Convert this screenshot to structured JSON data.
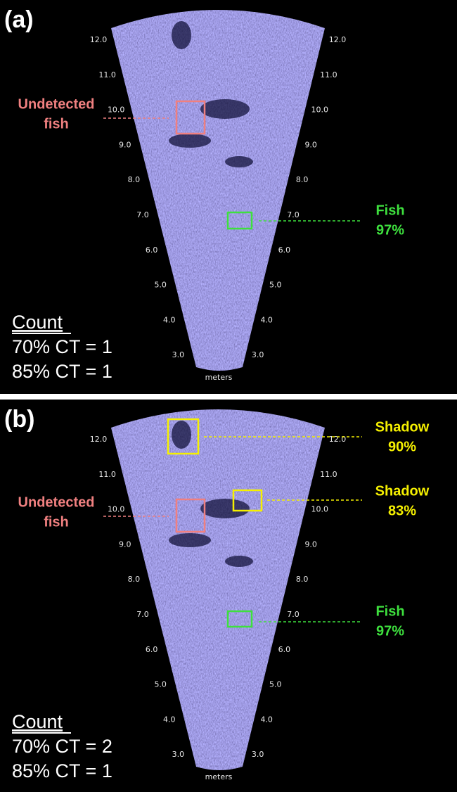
{
  "panels": [
    {
      "label": "(a)",
      "range_left": [
        "12.0",
        "11.0",
        "10.0",
        "9.0",
        "8.0",
        "7.0",
        "6.0",
        "5.0",
        "4.0",
        "3.0"
      ],
      "range_right": [
        "12.0",
        "11.0",
        "10.0",
        "9.0",
        "8.0",
        "7.0",
        "6.0",
        "5.0",
        "4.0",
        "3.0"
      ],
      "unit": "meters",
      "annotations": [
        {
          "lines": [
            "Undetected",
            "fish"
          ],
          "color": "#f08080"
        },
        {
          "lines": [
            "Fish",
            "97%"
          ],
          "color": "#3ee03e"
        }
      ],
      "count": {
        "title": "Count",
        "lines": [
          "70% CT = 1",
          "85% CT = 1"
        ]
      }
    },
    {
      "label": "(b)",
      "range_left": [
        "12.0",
        "11.0",
        "10.0",
        "9.0",
        "8.0",
        "7.0",
        "6.0",
        "5.0",
        "4.0",
        "3.0"
      ],
      "range_right": [
        "12.0",
        "11.0",
        "10.0",
        "9.0",
        "8.0",
        "7.0",
        "6.0",
        "5.0",
        "4.0",
        "3.0"
      ],
      "unit": "meters",
      "annotations": [
        {
          "lines": [
            "Shadow",
            "90%"
          ],
          "color": "#f5f000"
        },
        {
          "lines": [
            "Shadow",
            "83%"
          ],
          "color": "#f5f000"
        },
        {
          "lines": [
            "Undetected",
            "fish"
          ],
          "color": "#f08080"
        },
        {
          "lines": [
            "Fish",
            "97%"
          ],
          "color": "#3ee03e"
        }
      ],
      "count": {
        "title": "Count",
        "lines": [
          "70% CT = 2",
          "85% CT = 1"
        ]
      }
    }
  ]
}
